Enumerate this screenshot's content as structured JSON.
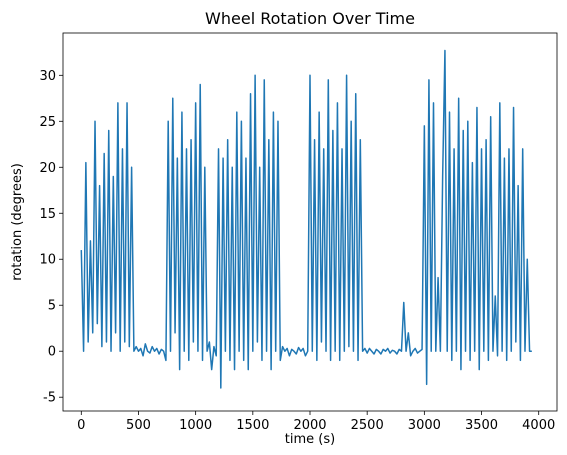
{
  "chart_data": {
    "type": "line",
    "title": "Wheel Rotation Over Time",
    "xlabel": "time (s)",
    "ylabel": "rotation (degrees)",
    "x": [
      0,
      20,
      40,
      60,
      80,
      100,
      120,
      140,
      160,
      180,
      200,
      220,
      240,
      260,
      280,
      300,
      320,
      340,
      360,
      380,
      400,
      420,
      440,
      460,
      480,
      500,
      520,
      540,
      560,
      580,
      600,
      620,
      640,
      660,
      680,
      700,
      720,
      740,
      760,
      780,
      800,
      820,
      840,
      860,
      880,
      900,
      920,
      940,
      960,
      980,
      1000,
      1020,
      1040,
      1060,
      1080,
      1100,
      1120,
      1140,
      1160,
      1180,
      1200,
      1220,
      1240,
      1260,
      1280,
      1300,
      1320,
      1340,
      1360,
      1380,
      1400,
      1420,
      1440,
      1460,
      1480,
      1500,
      1520,
      1540,
      1560,
      1580,
      1600,
      1620,
      1640,
      1660,
      1680,
      1700,
      1720,
      1740,
      1760,
      1780,
      1800,
      1820,
      1840,
      1860,
      1880,
      1900,
      1920,
      1940,
      1960,
      1980,
      2000,
      2020,
      2040,
      2060,
      2080,
      2100,
      2120,
      2140,
      2160,
      2180,
      2200,
      2220,
      2240,
      2260,
      2280,
      2300,
      2320,
      2340,
      2360,
      2380,
      2400,
      2420,
      2440,
      2460,
      2480,
      2500,
      2520,
      2540,
      2560,
      2580,
      2600,
      2620,
      2640,
      2660,
      2680,
      2700,
      2720,
      2740,
      2760,
      2780,
      2800,
      2820,
      2840,
      2860,
      2880,
      2900,
      2920,
      2940,
      2960,
      2980,
      3000,
      3020,
      3040,
      3060,
      3080,
      3100,
      3120,
      3140,
      3160,
      3180,
      3200,
      3220,
      3240,
      3260,
      3280,
      3300,
      3320,
      3340,
      3360,
      3380,
      3400,
      3420,
      3440,
      3460,
      3480,
      3500,
      3520,
      3540,
      3560,
      3580,
      3600,
      3620,
      3640,
      3660,
      3680,
      3700,
      3720,
      3740,
      3760,
      3780,
      3800,
      3820,
      3840,
      3860,
      3880,
      3900,
      3920,
      3940
    ],
    "series": [
      {
        "name": "rotation",
        "color": "#1f77b4",
        "values": [
          11,
          0,
          20.5,
          1,
          12,
          2,
          25,
          3,
          18,
          0.5,
          21.5,
          1,
          24,
          0,
          19,
          2,
          27,
          0,
          22,
          1,
          27,
          0.5,
          20,
          0,
          0.5,
          0,
          0.3,
          -0.5,
          0.8,
          0,
          -0.2,
          0.5,
          0,
          0.3,
          -0.3,
          0.2,
          0,
          -1,
          25,
          0,
          27.5,
          2,
          21,
          -2,
          26,
          0,
          22,
          -1,
          23,
          1,
          27,
          0,
          29,
          -1,
          20,
          0,
          1,
          -2,
          0.5,
          -0.5,
          22,
          -4,
          21,
          0,
          23,
          -1,
          20,
          -2,
          26,
          0,
          25,
          -1,
          21,
          -2,
          28,
          0,
          30,
          1,
          20,
          -1,
          29.5,
          0,
          23,
          -2,
          26,
          0,
          25,
          -1,
          0.5,
          0,
          0.3,
          -0.5,
          0.2,
          0,
          -0.3,
          0.4,
          0,
          0.3,
          -0.5,
          0,
          30,
          0,
          23,
          -1,
          26,
          1,
          22,
          0,
          29.5,
          -1,
          24,
          0,
          27,
          -1,
          22,
          0,
          30,
          0.5,
          25,
          0,
          28,
          -1,
          23,
          0,
          0.3,
          -0.2,
          0.3,
          0,
          -0.3,
          0.2,
          0,
          -0.3,
          0.2,
          0,
          0.3,
          -0.2,
          0.1,
          0,
          -0.3,
          0.2,
          0,
          5.3,
          0,
          2,
          -0.5,
          0,
          0.3,
          -0.2,
          0,
          0.2,
          24.5,
          -3.6,
          29.5,
          0,
          27,
          0,
          8,
          0,
          19,
          32.7,
          0,
          26,
          -1,
          22,
          0,
          27.5,
          -2,
          24,
          0,
          25,
          -1,
          20.5,
          0,
          26.5,
          -2,
          22,
          0,
          23,
          -1,
          25.5,
          0,
          6,
          -0.5,
          27,
          0,
          21,
          -1,
          22,
          0,
          26.5,
          1,
          18,
          -1,
          22,
          0,
          10,
          0,
          0
        ]
      }
    ],
    "xlim": [
      -160,
      4160
    ],
    "xticks": [
      0,
      500,
      1000,
      1500,
      2000,
      2500,
      3000,
      3500,
      4000
    ],
    "ylim": [
      -6.5,
      34.6
    ],
    "yticks": [
      -5,
      0,
      5,
      10,
      15,
      20,
      25,
      30
    ],
    "grid": false
  }
}
